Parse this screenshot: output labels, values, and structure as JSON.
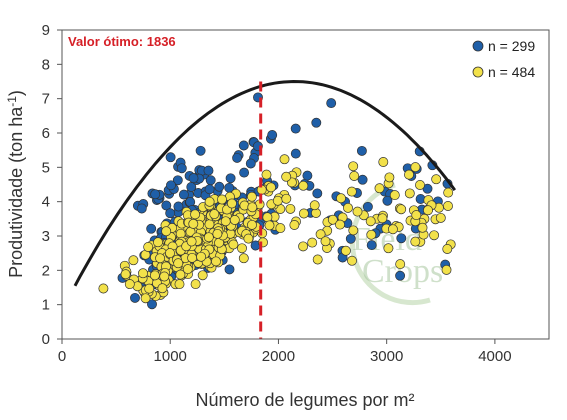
{
  "chart_data": {
    "type": "scatter",
    "xlabel": "Número de legumes por m²",
    "ylabel": "Produtividade (ton ha-1)",
    "ylabel_main": "Produtividade (ton ha",
    "ylabel_sup": "-1",
    "ylabel_close": ")",
    "xlim": [
      0,
      4500
    ],
    "ylim": [
      0,
      9
    ],
    "xticks": [
      0,
      1000,
      2000,
      3000,
      4000
    ],
    "yticks": [
      0,
      1,
      2,
      3,
      4,
      5,
      6,
      7,
      8,
      9
    ],
    "grid": false,
    "legend_position": "top-right",
    "annotation": "Valor ótimo: 1836",
    "optimum_x": 1836,
    "curve": {
      "type": "quadratic",
      "x_range": [
        120,
        3630
      ],
      "peak_x": 2150,
      "peak_y": 7.5,
      "start_y": 1.55
    },
    "series": [
      {
        "name": "n = 299",
        "color": "#1f5fa8",
        "count": 299
      },
      {
        "name": "n = 484",
        "color": "#f2e14a",
        "count": 484
      }
    ],
    "colors": {
      "reference_line": "#d62027",
      "curve": "#1a1a1a",
      "marker_edge": "#333333"
    },
    "watermark": [
      "Field",
      "Crops"
    ]
  }
}
